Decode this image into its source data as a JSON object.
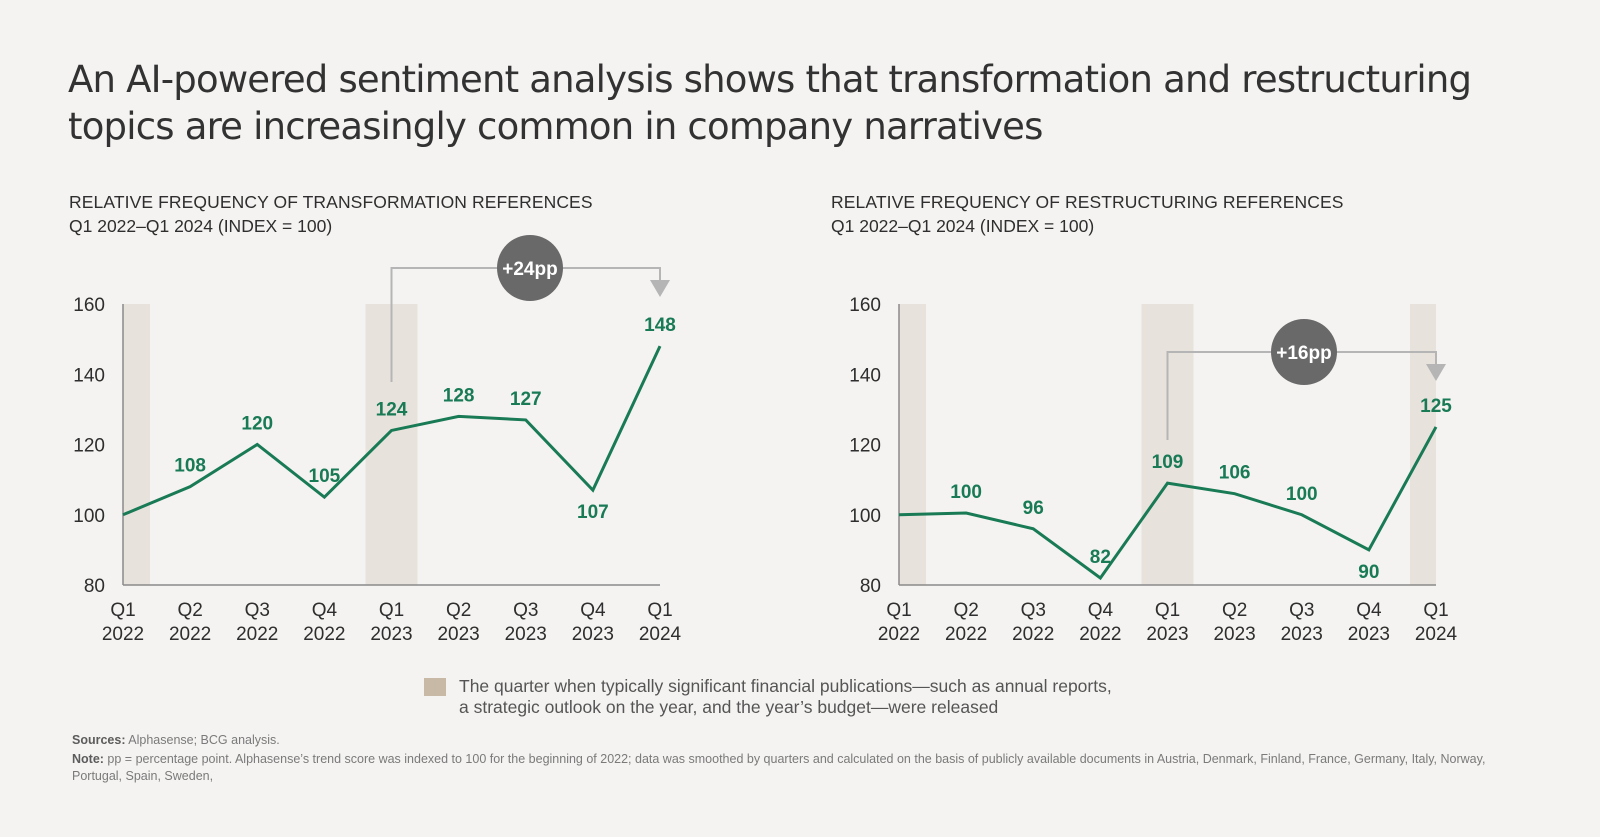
{
  "title_line1": "An AI-powered sentiment analysis shows that transformation and restructuring",
  "title_line2": "topics are increasingly common in company narratives",
  "colors": {
    "line": "#197a56",
    "band": "#e8e2dc",
    "legend_swatch": "#c7b9a6",
    "badge": "#696969",
    "bracket": "#b5b5b5",
    "axis": "#8a8a8a"
  },
  "legend": {
    "line1": "The quarter when typically significant financial publications—such as annual reports,",
    "line2": "a strategic outlook on the year, and the year’s budget—were released"
  },
  "footnotes": {
    "sources_label": "Sources:",
    "sources_text": " Alphasense; BCG analysis.",
    "note_label": "Note:",
    "note_text": " pp = percentage point. Alphasense’s trend score was indexed to 100 for the beginning of 2022; data was smoothed by quarters and calculated on the basis of publicly available documents in Austria, Denmark, Finland, France, Germany, Italy, Norway, Portugal, Spain, Sweden,"
  },
  "chart_data": [
    {
      "type": "line",
      "title": "RELATIVE FREQUENCY OF TRANSFORMATION REFERENCES",
      "subtitle": "Q1 2022–Q1 2024 (INDEX = 100)",
      "categories": [
        [
          "Q1",
          "2022"
        ],
        [
          "Q2",
          "2022"
        ],
        [
          "Q3",
          "2022"
        ],
        [
          "Q4",
          "2022"
        ],
        [
          "Q1",
          "2023"
        ],
        [
          "Q2",
          "2023"
        ],
        [
          "Q3",
          "2023"
        ],
        [
          "Q4",
          "2023"
        ],
        [
          "Q1",
          "2024"
        ]
      ],
      "series": [
        {
          "name": "Transformation references index",
          "values": [
            100,
            108,
            120,
            105,
            124,
            128,
            127,
            107,
            148
          ]
        }
      ],
      "data_labels": [
        "",
        "108",
        "120",
        "105",
        "124",
        "128",
        "127",
        "107",
        "148"
      ],
      "label_below": [
        false,
        false,
        false,
        false,
        false,
        false,
        false,
        true,
        false
      ],
      "ylim": [
        80,
        160
      ],
      "yticks": [
        80,
        100,
        120,
        140,
        160
      ],
      "grid": false,
      "highlight_quarters": [
        0,
        4
      ],
      "annotation": {
        "from_index": 4,
        "to_index": 8,
        "text": "+24pp"
      }
    },
    {
      "type": "line",
      "title": "RELATIVE FREQUENCY OF RESTRUCTURING REFERENCES",
      "subtitle": "Q1 2022–Q1 2024 (INDEX = 100)",
      "categories": [
        [
          "Q1",
          "2022"
        ],
        [
          "Q2",
          "2022"
        ],
        [
          "Q3",
          "2022"
        ],
        [
          "Q4",
          "2022"
        ],
        [
          "Q1",
          "2023"
        ],
        [
          "Q2",
          "2023"
        ],
        [
          "Q3",
          "2023"
        ],
        [
          "Q4",
          "2023"
        ],
        [
          "Q1",
          "2024"
        ]
      ],
      "series": [
        {
          "name": "Restructuring references index",
          "values": [
            100,
            100.5,
            96,
            82,
            109,
            106,
            100,
            90,
            125
          ]
        }
      ],
      "data_labels": [
        "",
        "100",
        "96",
        "82",
        "109",
        "106",
        "100",
        "90",
        "125"
      ],
      "label_below": [
        false,
        false,
        false,
        false,
        false,
        false,
        false,
        true,
        false
      ],
      "ylim": [
        80,
        160
      ],
      "yticks": [
        80,
        100,
        120,
        140,
        160
      ],
      "grid": false,
      "highlight_quarters": [
        0,
        4,
        8
      ],
      "annotation": {
        "from_index": 4,
        "to_index": 8,
        "text": "+16pp"
      }
    }
  ]
}
